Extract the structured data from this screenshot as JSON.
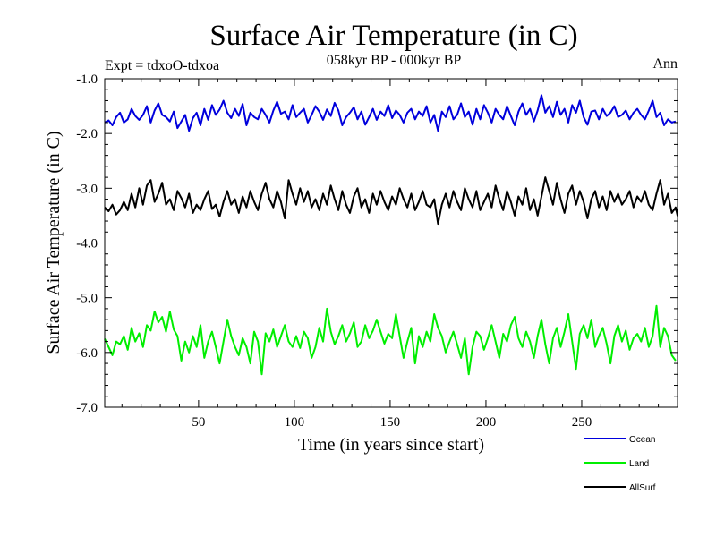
{
  "chart_data": {
    "type": "line",
    "title": "Surface Air Temperature (in C)",
    "subtitle": "058kyr BP - 000kyr BP",
    "experiment": "Expt = tdxoO-tdxoa",
    "season": "Ann",
    "xlabel": "Time (in years since start)",
    "ylabel": "Surface Air Temperature (in C)",
    "xlim": [
      1,
      300
    ],
    "ylim": [
      -7.0,
      -1.0
    ],
    "xticks": [
      50,
      100,
      150,
      200,
      250
    ],
    "xtick_labels": [
      "50",
      "100",
      "150",
      "200",
      "250"
    ],
    "yticks": [
      -7.0,
      -6.0,
      -5.0,
      -4.0,
      -3.0,
      -2.0,
      -1.0
    ],
    "ytick_labels": [
      "-7.0",
      "-6.0",
      "-5.0",
      "-4.0",
      "-3.0",
      "-2.0",
      "-1.0"
    ],
    "grid": false,
    "legend_position": "bottom-right",
    "series": [
      {
        "name": "Ocean",
        "color": "#0000dd",
        "x_start": 1,
        "x_step": 2,
        "values": [
          -1.8,
          -1.76,
          -1.85,
          -1.7,
          -1.62,
          -1.8,
          -1.74,
          -1.55,
          -1.68,
          -1.75,
          -1.66,
          -1.5,
          -1.8,
          -1.58,
          -1.45,
          -1.66,
          -1.7,
          -1.78,
          -1.6,
          -1.9,
          -1.78,
          -1.66,
          -1.95,
          -1.72,
          -1.62,
          -1.85,
          -1.55,
          -1.75,
          -1.48,
          -1.66,
          -1.56,
          -1.4,
          -1.62,
          -1.72,
          -1.55,
          -1.68,
          -1.46,
          -1.85,
          -1.62,
          -1.7,
          -1.74,
          -1.55,
          -1.66,
          -1.8,
          -1.58,
          -1.42,
          -1.64,
          -1.6,
          -1.74,
          -1.48,
          -1.7,
          -1.62,
          -1.55,
          -1.8,
          -1.66,
          -1.5,
          -1.6,
          -1.75,
          -1.56,
          -1.68,
          -1.44,
          -1.58,
          -1.85,
          -1.7,
          -1.62,
          -1.52,
          -1.74,
          -1.6,
          -1.84,
          -1.7,
          -1.55,
          -1.75,
          -1.6,
          -1.68,
          -1.48,
          -1.72,
          -1.58,
          -1.66,
          -1.8,
          -1.62,
          -1.55,
          -1.74,
          -1.6,
          -1.68,
          -1.5,
          -1.8,
          -1.66,
          -1.95,
          -1.6,
          -1.7,
          -1.5,
          -1.74,
          -1.66,
          -1.45,
          -1.7,
          -1.6,
          -1.84,
          -1.55,
          -1.74,
          -1.48,
          -1.62,
          -1.8,
          -1.55,
          -1.66,
          -1.74,
          -1.5,
          -1.68,
          -1.85,
          -1.6,
          -1.45,
          -1.66,
          -1.55,
          -1.78,
          -1.58,
          -1.3,
          -1.62,
          -1.5,
          -1.7,
          -1.42,
          -1.66,
          -1.55,
          -1.8,
          -1.48,
          -1.62,
          -1.4,
          -1.7,
          -1.84,
          -1.6,
          -1.58,
          -1.74,
          -1.55,
          -1.68,
          -1.62,
          -1.5,
          -1.7,
          -1.66,
          -1.58,
          -1.74,
          -1.62,
          -1.55,
          -1.66,
          -1.74,
          -1.58,
          -1.4,
          -1.7,
          -1.62,
          -1.85,
          -1.74,
          -1.8,
          -1.78
        ]
      },
      {
        "name": "Land",
        "color": "#00ee00",
        "x_start": 1,
        "x_step": 2,
        "values": [
          -5.75,
          -5.9,
          -6.05,
          -5.8,
          -5.85,
          -5.7,
          -5.95,
          -5.55,
          -5.8,
          -5.65,
          -5.9,
          -5.5,
          -5.6,
          -5.25,
          -5.45,
          -5.35,
          -5.62,
          -5.25,
          -5.58,
          -5.7,
          -6.15,
          -5.8,
          -6.0,
          -5.7,
          -5.9,
          -5.5,
          -6.1,
          -5.8,
          -5.62,
          -5.9,
          -6.2,
          -5.8,
          -5.4,
          -5.7,
          -5.9,
          -6.05,
          -5.74,
          -5.9,
          -6.2,
          -5.62,
          -5.8,
          -6.4,
          -5.65,
          -5.8,
          -5.58,
          -5.9,
          -5.7,
          -5.5,
          -5.8,
          -5.9,
          -5.7,
          -5.92,
          -5.62,
          -5.74,
          -6.1,
          -5.9,
          -5.55,
          -5.8,
          -5.2,
          -5.62,
          -5.85,
          -5.7,
          -5.5,
          -5.8,
          -5.65,
          -5.45,
          -5.9,
          -5.8,
          -5.5,
          -5.74,
          -5.6,
          -5.4,
          -5.62,
          -5.84,
          -5.66,
          -5.74,
          -5.3,
          -5.7,
          -6.1,
          -5.8,
          -5.55,
          -6.2,
          -5.7,
          -5.9,
          -5.62,
          -5.8,
          -5.3,
          -5.55,
          -5.7,
          -6.0,
          -5.8,
          -5.62,
          -5.85,
          -6.1,
          -5.74,
          -6.4,
          -5.9,
          -5.62,
          -5.7,
          -5.95,
          -5.74,
          -5.5,
          -5.8,
          -6.1,
          -5.66,
          -5.8,
          -5.5,
          -5.35,
          -5.74,
          -5.9,
          -5.62,
          -5.8,
          -6.1,
          -5.7,
          -5.4,
          -5.85,
          -6.2,
          -5.74,
          -5.55,
          -5.9,
          -5.62,
          -5.3,
          -5.8,
          -6.3,
          -5.66,
          -5.5,
          -5.74,
          -5.4,
          -5.9,
          -5.7,
          -5.55,
          -5.84,
          -6.2,
          -5.7,
          -5.5,
          -5.8,
          -5.6,
          -5.95,
          -5.74,
          -5.66,
          -5.8,
          -5.55,
          -5.9,
          -5.7,
          -5.15,
          -5.9,
          -5.55,
          -5.7,
          -6.05,
          -6.15
        ]
      },
      {
        "name": "AllSurf",
        "color": "#000000",
        "x_start": 1,
        "x_step": 2,
        "values": [
          -3.35,
          -3.42,
          -3.3,
          -3.48,
          -3.4,
          -3.25,
          -3.4,
          -3.1,
          -3.35,
          -3.0,
          -3.3,
          -2.95,
          -2.85,
          -3.25,
          -3.1,
          -2.9,
          -3.3,
          -3.2,
          -3.4,
          -3.05,
          -3.18,
          -3.35,
          -3.1,
          -3.45,
          -3.3,
          -3.4,
          -3.2,
          -3.05,
          -3.38,
          -3.3,
          -3.52,
          -3.25,
          -3.05,
          -3.3,
          -3.2,
          -3.45,
          -3.15,
          -3.35,
          -3.05,
          -3.25,
          -3.4,
          -3.1,
          -2.9,
          -3.2,
          -3.35,
          -3.05,
          -3.25,
          -3.55,
          -2.85,
          -3.1,
          -3.3,
          -3.0,
          -3.25,
          -3.05,
          -3.35,
          -3.2,
          -3.4,
          -3.1,
          -3.3,
          -2.95,
          -3.2,
          -3.4,
          -3.05,
          -3.3,
          -3.45,
          -3.15,
          -3.0,
          -3.35,
          -3.2,
          -3.45,
          -3.1,
          -3.3,
          -3.05,
          -3.25,
          -3.4,
          -3.15,
          -3.3,
          -3.0,
          -3.2,
          -3.35,
          -3.1,
          -3.4,
          -3.25,
          -3.05,
          -3.3,
          -3.35,
          -3.2,
          -3.65,
          -3.3,
          -3.1,
          -3.35,
          -3.05,
          -3.25,
          -3.4,
          -3.0,
          -3.2,
          -3.35,
          -3.05,
          -3.4,
          -3.25,
          -3.1,
          -3.35,
          -2.95,
          -3.2,
          -3.4,
          -3.05,
          -3.25,
          -3.5,
          -3.15,
          -3.3,
          -3.0,
          -3.4,
          -3.2,
          -3.5,
          -3.15,
          -2.8,
          -3.05,
          -3.3,
          -2.9,
          -3.2,
          -3.45,
          -3.1,
          -2.95,
          -3.3,
          -3.05,
          -3.25,
          -3.55,
          -3.2,
          -3.05,
          -3.35,
          -3.15,
          -3.4,
          -3.05,
          -3.25,
          -3.1,
          -3.3,
          -3.2,
          -3.05,
          -3.35,
          -3.15,
          -3.25,
          -3.05,
          -3.3,
          -3.4,
          -3.1,
          -2.85,
          -3.3,
          -3.1,
          -3.45,
          -3.35,
          -3.5,
          -3.45
        ]
      }
    ]
  }
}
